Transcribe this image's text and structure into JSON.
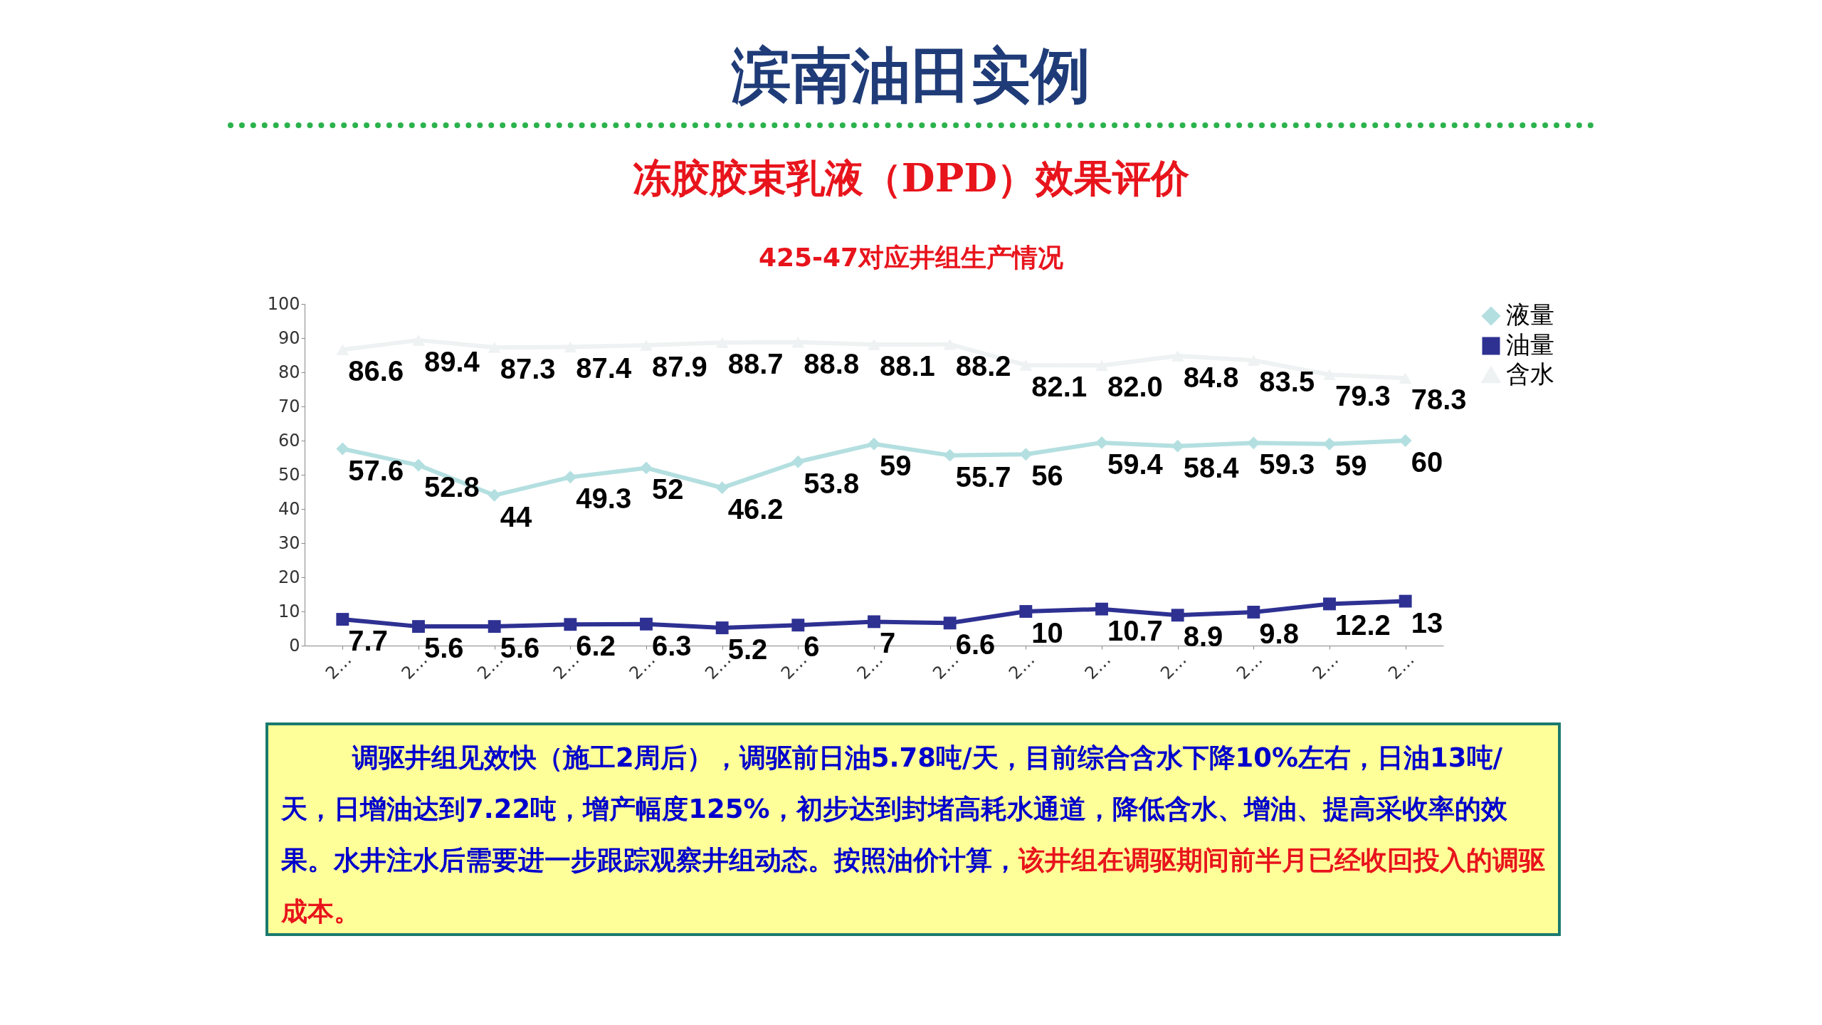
{
  "chart_data": {
    "type": "line",
    "title": "滨南油田实例",
    "subtitle": "冻胶胶束乳液（DPD）效果评价",
    "annotations": [
      "425-47对应井组生产情况",
      "调驱井组见效快（施工2周后），调驱前日油5.78吨/天，目前综合含水下降10%左右，日油13吨/天，日增油达到7.22吨，增产幅度125%，初步达到封堵高耗水通道，降低含水、增油、提高采收率的效果。水井注水后需要进一步跟踪观察井组动态。按照油价计算，",
      "该井组在调驱期间前半月已经收回投入的调驱成本。"
    ],
    "categories": [
      "2…",
      "2…",
      "2…",
      "2…",
      "2…",
      "2…",
      "2…",
      "2…",
      "2…",
      "2…",
      "2…",
      "2…",
      "2…",
      "2…",
      "2…"
    ],
    "series": [
      {
        "name": "液量",
        "color": "#b4dfe0",
        "marker": "diamond",
        "values": [
          57.6,
          52.8,
          44,
          49.3,
          52,
          46.2,
          53.8,
          59,
          55.7,
          56,
          59.4,
          58.4,
          59.3,
          59,
          60
        ]
      },
      {
        "name": "油量",
        "color": "#2e3192",
        "marker": "square",
        "values": [
          7.7,
          5.6,
          5.6,
          6.2,
          6.3,
          5.2,
          6,
          7,
          6.6,
          10,
          10.7,
          8.9,
          9.8,
          12.2,
          13
        ]
      },
      {
        "name": "含水",
        "color": "#eef2f2",
        "marker": "triangle",
        "value_labels": [
          "86.6",
          "89.4",
          "87.3",
          "87.4",
          "87.9",
          "88.7",
          "88.8",
          "88.1",
          "88.2",
          "82.1",
          "82.0",
          "84.8",
          "83.5",
          "79.3",
          "78.3"
        ],
        "values": [
          86.6,
          89.4,
          87.3,
          87.4,
          87.9,
          88.7,
          88.8,
          88.1,
          88.2,
          82.1,
          82.0,
          84.8,
          83.5,
          79.3,
          78.3
        ]
      }
    ],
    "ylim": [
      0,
      100
    ],
    "yticks": [
      0,
      10,
      20,
      30,
      40,
      50,
      60,
      70,
      80,
      90,
      100
    ],
    "data_labels": true,
    "legend": "right",
    "grid": false,
    "line_style": "solid"
  }
}
